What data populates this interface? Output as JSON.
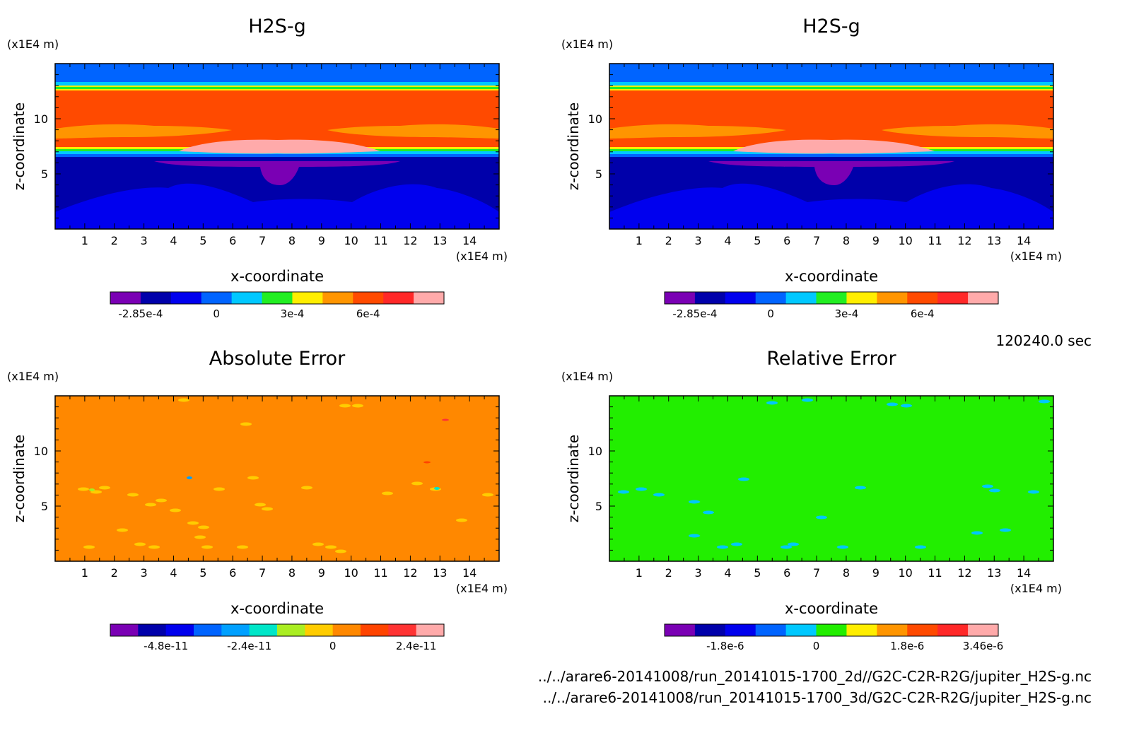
{
  "time_label": "120240.0 sec",
  "files": [
    "../../arare6-20141008/run_20141015-1700_2d//G2C-C2R-R2G/jupiter_H2S-g.nc",
    "../../arare6-20141008/run_20141015-1700_3d/G2C-C2R-R2G/jupiter_H2S-g.nc"
  ],
  "colors": {
    "levels": [
      "#7a00b4",
      "#0000aa",
      "#0000ee",
      "#0064ff",
      "#00c8ff",
      "#22ee22",
      "#ffee00",
      "#ff9500",
      "#ff4a00",
      "#ff2828",
      "#ffaaaa"
    ],
    "abs_levels": [
      "#7a00b4",
      "#0000aa",
      "#0000ee",
      "#0064ff",
      "#00a0ff",
      "#00e6c8",
      "#aaee22",
      "#ffcc00",
      "#ff8800",
      "#ff4400",
      "#ff3333",
      "#ffaaaa"
    ],
    "rel_levels": [
      "#7a00b4",
      "#0000aa",
      "#0000ee",
      "#0064ff",
      "#00c8ff",
      "#22ee00",
      "#ffee00",
      "#ff9500",
      "#ff4a00",
      "#ff2828",
      "#ffaaaa"
    ]
  },
  "chart_data": [
    {
      "type": "heatmap",
      "title": "H2S-g",
      "xlabel": "x-coordinate",
      "ylabel": "z-coordinate",
      "x_unit": "(x1E4 m)",
      "y_unit": "(x1E4 m)",
      "xlim": [
        0,
        15
      ],
      "ylim": [
        0,
        15
      ],
      "xticks": [
        "1",
        "2",
        "3",
        "4",
        "5",
        "6",
        "7",
        "8",
        "9",
        "10",
        "11",
        "12",
        "13",
        "14"
      ],
      "yticks": [
        "5",
        "10"
      ],
      "colorbar_ticks": [
        "-2.85e-4",
        "0",
        "3e-4",
        "6e-4"
      ],
      "color_levels": 11,
      "grid": false
    },
    {
      "type": "heatmap",
      "title": "H2S-g",
      "xlabel": "x-coordinate",
      "ylabel": "z-coordinate",
      "x_unit": "(x1E4 m)",
      "y_unit": "(x1E4 m)",
      "xlim": [
        0,
        15
      ],
      "ylim": [
        0,
        15
      ],
      "xticks": [
        "1",
        "2",
        "3",
        "4",
        "5",
        "6",
        "7",
        "8",
        "9",
        "10",
        "11",
        "12",
        "13",
        "14"
      ],
      "yticks": [
        "5",
        "10"
      ],
      "colorbar_ticks": [
        "-2.85e-4",
        "0",
        "3e-4",
        "6e-4"
      ],
      "color_levels": 11,
      "grid": false
    },
    {
      "type": "heatmap",
      "title": "Absolute Error",
      "xlabel": "x-coordinate",
      "ylabel": "z-coordinate",
      "x_unit": "(x1E4 m)",
      "y_unit": "(x1E4 m)",
      "xlim": [
        0,
        15
      ],
      "ylim": [
        0,
        15
      ],
      "xticks": [
        "1",
        "2",
        "3",
        "4",
        "5",
        "6",
        "7",
        "8",
        "9",
        "10",
        "11",
        "12",
        "13",
        "14"
      ],
      "yticks": [
        "5",
        "10"
      ],
      "colorbar_ticks": [
        "-4.8e-11",
        "-2.4e-11",
        "0",
        "2.4e-11"
      ],
      "color_levels": 12,
      "grid": false
    },
    {
      "type": "heatmap",
      "title": "Relative Error",
      "xlabel": "x-coordinate",
      "ylabel": "z-coordinate",
      "x_unit": "(x1E4 m)",
      "y_unit": "(x1E4 m)",
      "xlim": [
        0,
        15
      ],
      "ylim": [
        0,
        15
      ],
      "xticks": [
        "1",
        "2",
        "3",
        "4",
        "5",
        "6",
        "7",
        "8",
        "9",
        "10",
        "11",
        "12",
        "13",
        "14"
      ],
      "yticks": [
        "5",
        "10"
      ],
      "colorbar_ticks": [
        "-1.8e-6",
        "0",
        "1.8e-6",
        "3.46e-6"
      ],
      "color_levels": 11,
      "grid": false
    }
  ]
}
